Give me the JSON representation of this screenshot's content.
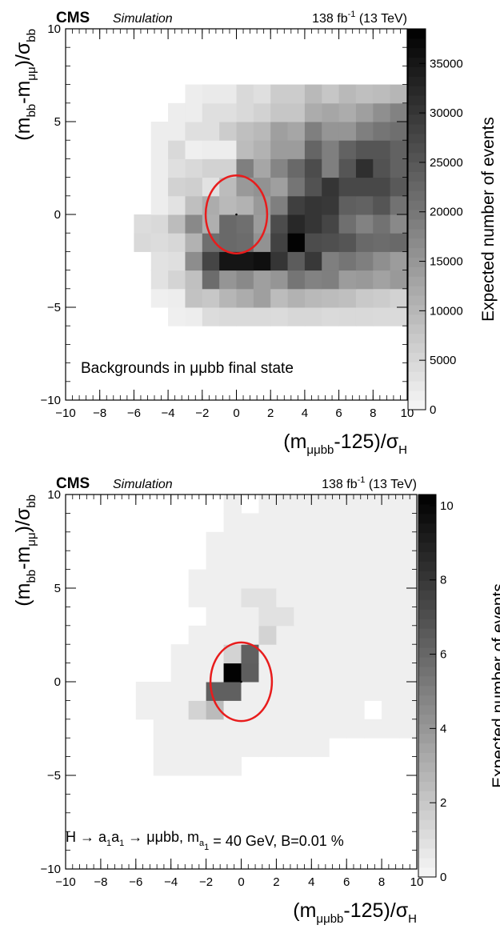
{
  "chart_data": [
    {
      "type": "heatmap",
      "experiment": "CMS",
      "experiment_note": "Simulation",
      "lumi_value": "138 fb",
      "lumi_exponent": "-1",
      "lumi_energy": "(13 TeV)",
      "annotation_parts": [
        "Backgrounds in ",
        "μμ",
        "bb final state"
      ],
      "xlabel_parts": [
        "(m",
        "μμbb",
        "-125)/σ",
        "H"
      ],
      "ylabel_parts": [
        "(m",
        "bb",
        "-m",
        "μμ",
        ")/σ",
        "bb"
      ],
      "colorbar_label": "Expected number of events",
      "xlim": [
        -10,
        10
      ],
      "ylim": [
        -10,
        10
      ],
      "zlim": [
        0,
        38500
      ],
      "xticks": [
        -10,
        -8,
        -6,
        -4,
        -2,
        0,
        2,
        4,
        6,
        8,
        10
      ],
      "yticks": [
        -10,
        -5,
        0,
        5,
        10
      ],
      "zticks": [
        0,
        5000,
        10000,
        15000,
        20000,
        25000,
        30000,
        35000
      ],
      "bin_width": 1,
      "x_edges_start": -6,
      "y_edges_start": -6,
      "ellipse": {
        "center": [
          0,
          0
        ],
        "radius_x": 1.8,
        "radius_y": 2.1,
        "color": "#e81c1c"
      },
      "z_grid": [
        [
          0,
          0,
          1200,
          1500,
          4200,
          4500,
          4500,
          4500,
          4300,
          5000,
          5000,
          4500,
          4600,
          4600,
          4500,
          4500
        ],
        [
          0,
          1200,
          1500,
          8200,
          7500,
          10200,
          11700,
          13700,
          9200,
          10700,
          9700,
          9200,
          8700,
          7200,
          6700,
          5700
        ],
        [
          0,
          3200,
          5500,
          8600,
          21700,
          15200,
          17200,
          13700,
          15200,
          20200,
          18200,
          18700,
          14200,
          14700,
          13200,
          14700
        ],
        [
          0,
          3200,
          3700,
          16500,
          27700,
          35200,
          35200,
          36200,
          30200,
          24200,
          29700,
          18700,
          20200,
          18700,
          16200,
          14200
        ],
        [
          4700,
          4200,
          5000,
          10700,
          21200,
          22200,
          21700,
          15700,
          28200,
          38000,
          26700,
          26200,
          25200,
          22200,
          21700,
          22200
        ],
        [
          4200,
          4700,
          9200,
          17200,
          11200,
          22200,
          21200,
          14200,
          26700,
          32200,
          30200,
          27700,
          21200,
          18200,
          20700,
          17200
        ],
        [
          0,
          1500,
          3200,
          8700,
          11700,
          9700,
          10700,
          14700,
          18700,
          28700,
          30200,
          29700,
          23700,
          23200,
          25200,
          20700
        ],
        [
          0,
          1500,
          5700,
          6200,
          3200,
          9200,
          14700,
          15700,
          13700,
          20200,
          25700,
          30200,
          27200,
          27200,
          27200,
          24700
        ],
        [
          0,
          1500,
          3700,
          4700,
          5700,
          5700,
          18700,
          12700,
          17700,
          22200,
          26700,
          18700,
          25200,
          31200,
          25700,
          23200
        ],
        [
          0,
          1500,
          4700,
          1200,
          1500,
          1500,
          9200,
          10700,
          14200,
          14200,
          22700,
          18700,
          23200,
          25200,
          25200,
          23200
        ],
        [
          0,
          1500,
          1500,
          3700,
          3700,
          6700,
          8700,
          9700,
          13700,
          12700,
          18700,
          15200,
          15200,
          18700,
          20200,
          21200
        ],
        [
          0,
          0,
          1500,
          1500,
          3700,
          3700,
          4700,
          5700,
          7700,
          7700,
          11700,
          12700,
          11700,
          13700,
          16200,
          18200
        ],
        [
          0,
          0,
          0,
          1500,
          2000,
          2000,
          4700,
          3700,
          6700,
          6700,
          9700,
          7700,
          9700,
          8700,
          9200,
          10200
        ]
      ]
    },
    {
      "type": "heatmap",
      "experiment": "CMS",
      "experiment_note": "Simulation",
      "lumi_value": "138 fb",
      "lumi_exponent": "-1",
      "lumi_energy": "(13 TeV)",
      "annotation_parts": [
        "H → a",
        "1",
        "a",
        "1",
        " → μμbb,  m",
        "a",
        "1",
        " = 40 GeV, B=0.01 %"
      ],
      "xlabel_parts": [
        "(m",
        "μμbb",
        "-125)/σ",
        "H"
      ],
      "ylabel_parts": [
        "(m",
        "bb",
        "-m",
        "μμ",
        ")/σ",
        "bb"
      ],
      "colorbar_label": "Expected number of events",
      "xlim": [
        -10,
        10
      ],
      "ylim": [
        -10,
        10
      ],
      "zlim": [
        0,
        10.3
      ],
      "xticks": [
        -10,
        -8,
        -6,
        -4,
        -2,
        0,
        2,
        4,
        6,
        8,
        10
      ],
      "yticks": [
        -10,
        -5,
        0,
        5,
        10
      ],
      "zticks": [
        0,
        2,
        4,
        6,
        8,
        10
      ],
      "bin_width": 1,
      "x_edges_start": -5,
      "y_edges_start": -6,
      "ellipse": {
        "center": [
          0,
          0
        ],
        "radius_x": 1.75,
        "radius_y": 2.1,
        "color": "#e81c1c"
      },
      "cells": [
        [
          -5,
          -5,
          0.35
        ],
        [
          -4,
          -5,
          0.35
        ],
        [
          -3,
          -5,
          0.35
        ],
        [
          -2,
          -5,
          0.35
        ],
        [
          -1,
          -5,
          0.35
        ],
        [
          -5,
          -4,
          0.35
        ],
        [
          -4,
          -4,
          0.35
        ],
        [
          -3,
          -4,
          0.35
        ],
        [
          -2,
          -4,
          0.35
        ],
        [
          -1,
          -4,
          0.35
        ],
        [
          0,
          -4,
          0.35
        ],
        [
          1,
          -4,
          0.35
        ],
        [
          2,
          -4,
          0.35
        ],
        [
          3,
          -4,
          0.35
        ],
        [
          4,
          -4,
          0.35
        ],
        [
          -5,
          -3,
          0.35
        ],
        [
          -4,
          -3,
          0.35
        ],
        [
          -3,
          -3,
          0.35
        ],
        [
          -2,
          -3,
          0.35
        ],
        [
          -1,
          -3,
          0.35
        ],
        [
          0,
          -3,
          0.35
        ],
        [
          1,
          -3,
          0.35
        ],
        [
          2,
          -3,
          0.35
        ],
        [
          3,
          -3,
          0.35
        ],
        [
          4,
          -3,
          0.35
        ],
        [
          5,
          -3,
          0.35
        ],
        [
          6,
          -3,
          0.35
        ],
        [
          7,
          -3,
          0.35
        ],
        [
          8,
          -3,
          0.35
        ],
        [
          9,
          -3,
          0.35
        ],
        [
          -6,
          -2,
          0.35
        ],
        [
          -5,
          -2,
          0.35
        ],
        [
          -4,
          -2,
          0.35
        ],
        [
          -3,
          -2,
          1.5
        ],
        [
          -2,
          -2,
          2.5
        ],
        [
          -1,
          -2,
          0.35
        ],
        [
          0,
          -2,
          0.35
        ],
        [
          1,
          -2,
          0.35
        ],
        [
          2,
          -2,
          0.35
        ],
        [
          3,
          -2,
          0.35
        ],
        [
          4,
          -2,
          0.35
        ],
        [
          5,
          -2,
          0.35
        ],
        [
          6,
          -2,
          0.35
        ],
        [
          8,
          -2,
          0.35
        ],
        [
          9,
          -2,
          0.35
        ],
        [
          -6,
          -1,
          0.35
        ],
        [
          -5,
          -1,
          0.35
        ],
        [
          -4,
          -1,
          0.35
        ],
        [
          -3,
          -1,
          0.35
        ],
        [
          -2,
          -1,
          6.3
        ],
        [
          -1,
          -1,
          6.3
        ],
        [
          0,
          -1,
          0.35
        ],
        [
          1,
          -1,
          0.35
        ],
        [
          2,
          -1,
          0.35
        ],
        [
          3,
          -1,
          0.35
        ],
        [
          4,
          -1,
          0.35
        ],
        [
          5,
          -1,
          0.35
        ],
        [
          6,
          -1,
          0.35
        ],
        [
          7,
          -1,
          0.35
        ],
        [
          8,
          -1,
          0.35
        ],
        [
          9,
          -1,
          0.35
        ],
        [
          -4,
          0,
          0.35
        ],
        [
          -3,
          0,
          0.35
        ],
        [
          -2,
          0,
          0.35
        ],
        [
          -1,
          0,
          10.2
        ],
        [
          0,
          0,
          6.4
        ],
        [
          1,
          0,
          0.35
        ],
        [
          2,
          0,
          0.35
        ],
        [
          3,
          0,
          0.35
        ],
        [
          4,
          0,
          0.35
        ],
        [
          5,
          0,
          0.35
        ],
        [
          6,
          0,
          0.35
        ],
        [
          7,
          0,
          0.35
        ],
        [
          8,
          0,
          0.35
        ],
        [
          9,
          0,
          0.35
        ],
        [
          -4,
          1,
          0.35
        ],
        [
          -3,
          1,
          0.35
        ],
        [
          -2,
          1,
          0.35
        ],
        [
          -1,
          1,
          1.5
        ],
        [
          0,
          1,
          6.3
        ],
        [
          1,
          1,
          0.35
        ],
        [
          2,
          1,
          0.35
        ],
        [
          3,
          1,
          0.35
        ],
        [
          4,
          1,
          0.35
        ],
        [
          5,
          1,
          0.35
        ],
        [
          6,
          1,
          0.35
        ],
        [
          7,
          1,
          0.35
        ],
        [
          8,
          1,
          0.35
        ],
        [
          9,
          1,
          0.35
        ],
        [
          -3,
          2,
          0.35
        ],
        [
          -2,
          2,
          0.35
        ],
        [
          -1,
          2,
          0.35
        ],
        [
          0,
          2,
          0.35
        ],
        [
          1,
          2,
          1.5
        ],
        [
          2,
          2,
          0.35
        ],
        [
          3,
          2,
          0.35
        ],
        [
          4,
          2,
          0.35
        ],
        [
          5,
          2,
          0.35
        ],
        [
          6,
          2,
          0.35
        ],
        [
          7,
          2,
          0.35
        ],
        [
          8,
          2,
          0.35
        ],
        [
          9,
          2,
          0.35
        ],
        [
          -2,
          3,
          0.35
        ],
        [
          -1,
          3,
          0.35
        ],
        [
          0,
          3,
          0.35
        ],
        [
          1,
          3,
          0.9
        ],
        [
          2,
          3,
          0.9
        ],
        [
          3,
          3,
          0.35
        ],
        [
          4,
          3,
          0.35
        ],
        [
          5,
          3,
          0.35
        ],
        [
          6,
          3,
          0.35
        ],
        [
          7,
          3,
          0.35
        ],
        [
          8,
          3,
          0.35
        ],
        [
          9,
          3,
          0.35
        ],
        [
          -3,
          4,
          0.35
        ],
        [
          -2,
          4,
          0.35
        ],
        [
          -1,
          4,
          0.35
        ],
        [
          0,
          4,
          0.9
        ],
        [
          1,
          4,
          0.9
        ],
        [
          2,
          4,
          0.35
        ],
        [
          3,
          4,
          0.35
        ],
        [
          4,
          4,
          0.35
        ],
        [
          5,
          4,
          0.35
        ],
        [
          6,
          4,
          0.35
        ],
        [
          7,
          4,
          0.35
        ],
        [
          8,
          4,
          0.35
        ],
        [
          9,
          4,
          0.35
        ],
        [
          -3,
          5,
          0.35
        ],
        [
          -2,
          5,
          0.35
        ],
        [
          -1,
          5,
          0.35
        ],
        [
          0,
          5,
          0.35
        ],
        [
          1,
          5,
          0.35
        ],
        [
          2,
          5,
          0.35
        ],
        [
          3,
          5,
          0.35
        ],
        [
          4,
          5,
          0.35
        ],
        [
          5,
          5,
          0.35
        ],
        [
          6,
          5,
          0.35
        ],
        [
          7,
          5,
          0.35
        ],
        [
          8,
          5,
          0.35
        ],
        [
          9,
          5,
          0.35
        ],
        [
          -2,
          6,
          0.35
        ],
        [
          -1,
          6,
          0.35
        ],
        [
          0,
          6,
          0.35
        ],
        [
          1,
          6,
          0.35
        ],
        [
          2,
          6,
          0.35
        ],
        [
          3,
          6,
          0.35
        ],
        [
          4,
          6,
          0.35
        ],
        [
          5,
          6,
          0.35
        ],
        [
          6,
          6,
          0.35
        ],
        [
          7,
          6,
          0.35
        ],
        [
          8,
          6,
          0.35
        ],
        [
          9,
          6,
          0.35
        ],
        [
          -2,
          7,
          0.35
        ],
        [
          -1,
          7,
          0.35
        ],
        [
          0,
          7,
          0.35
        ],
        [
          1,
          7,
          0.35
        ],
        [
          2,
          7,
          0.35
        ],
        [
          3,
          7,
          0.35
        ],
        [
          4,
          7,
          0.35
        ],
        [
          5,
          7,
          0.35
        ],
        [
          6,
          7,
          0.35
        ],
        [
          7,
          7,
          0.35
        ],
        [
          8,
          7,
          0.35
        ],
        [
          9,
          7,
          0.35
        ],
        [
          -1,
          8,
          0.35
        ],
        [
          0,
          8,
          0.35
        ],
        [
          1,
          8,
          0.35
        ],
        [
          2,
          8,
          0.35
        ],
        [
          3,
          8,
          0.35
        ],
        [
          4,
          8,
          0.35
        ],
        [
          5,
          8,
          0.35
        ],
        [
          6,
          8,
          0.35
        ],
        [
          7,
          8,
          0.35
        ],
        [
          8,
          8,
          0.35
        ],
        [
          9,
          8,
          0.35
        ],
        [
          -1,
          9,
          0.35
        ],
        [
          1,
          9,
          0.35
        ],
        [
          2,
          9,
          0.35
        ],
        [
          3,
          9,
          0.35
        ],
        [
          4,
          9,
          0.35
        ],
        [
          5,
          9,
          0.35
        ],
        [
          6,
          9,
          0.35
        ],
        [
          7,
          9,
          0.35
        ],
        [
          8,
          9,
          0.35
        ],
        [
          9,
          9,
          0.35
        ]
      ]
    }
  ]
}
